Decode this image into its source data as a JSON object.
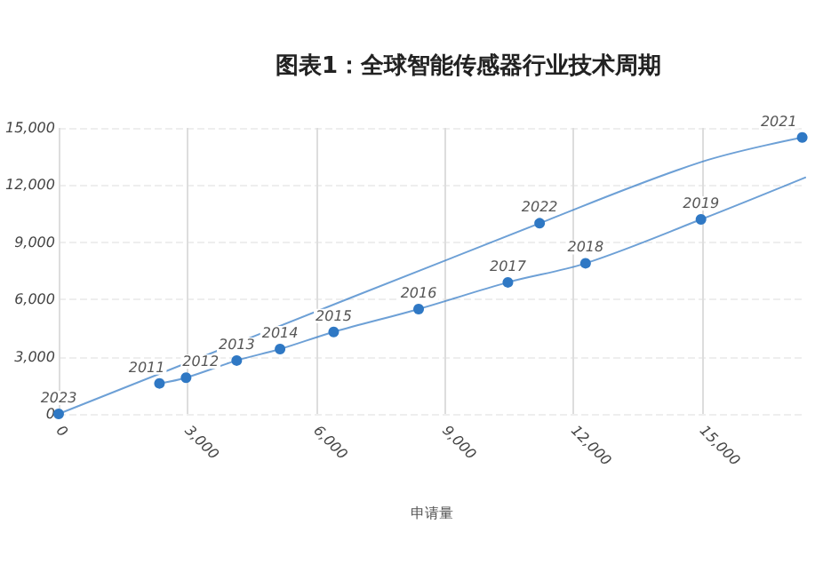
{
  "chart_data": {
    "type": "line",
    "title": "图表1：全球智能传感器行业技术周期",
    "xlabel": "申请量",
    "series": [
      {
        "color": "#2f78c4",
        "x": [
          2350,
          2970,
          4150,
          5160,
          6410,
          8390,
          10470,
          12280,
          14970,
          17400
        ],
        "values": [
          1600,
          1900,
          2800,
          3400,
          4300,
          5500,
          6900,
          7900,
          10200,
          12400
        ]
      },
      {
        "color": "#2f78c4",
        "x": [
          17330,
          14960,
          11210,
          0
        ],
        "values": [
          14500,
          13200,
          10000,
          0
        ]
      }
    ],
    "annotations": [
      {
        "text": "2011",
        "x": 2350,
        "y": 1600
      },
      {
        "text": "2012",
        "x": 2970,
        "y": 1900
      },
      {
        "text": "2013",
        "x": 4150,
        "y": 2800
      },
      {
        "text": "2014",
        "x": 5160,
        "y": 3400
      },
      {
        "text": "2015",
        "x": 6410,
        "y": 4300
      },
      {
        "text": "2016",
        "x": 8390,
        "y": 5500
      },
      {
        "text": "2017",
        "x": 10470,
        "y": 6900
      },
      {
        "text": "2018",
        "x": 12280,
        "y": 7900
      },
      {
        "text": "2019",
        "x": 14970,
        "y": 10200
      },
      {
        "text": "2021",
        "x": 17330,
        "y": 14500
      },
      {
        "text": "2022",
        "x": 11210,
        "y": 10000
      },
      {
        "text": "2023",
        "x": 0,
        "y": 0
      }
    ],
    "xlim": [
      0,
      17400
    ],
    "xticks": [
      {
        "value": 0,
        "label": "0"
      },
      {
        "value": 3000,
        "label": "3,000"
      },
      {
        "value": 6000,
        "label": "6,000"
      },
      {
        "value": 9000,
        "label": "9,000"
      },
      {
        "value": 12000,
        "label": "12,000"
      },
      {
        "value": 15000,
        "label": "15,000"
      }
    ],
    "ylim": [
      0,
      15000
    ],
    "yticks": [
      {
        "value": 0,
        "label": "0"
      },
      {
        "value": 3000,
        "label": "3,000"
      },
      {
        "value": 6000,
        "label": "6,000"
      },
      {
        "value": 9000,
        "label": "9,000"
      },
      {
        "value": 12000,
        "label": "12,000"
      },
      {
        "value": 15000,
        "label": "15,000"
      }
    ],
    "grid": true,
    "marker": "circle",
    "line_style": "solid"
  }
}
